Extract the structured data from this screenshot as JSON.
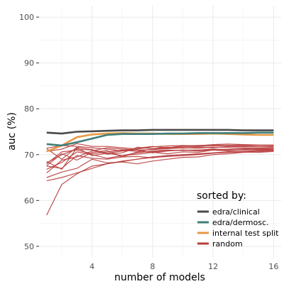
{
  "chart_data": {
    "type": "line",
    "xlabel": "number of models",
    "ylabel": "auc (%)",
    "xlim": [
      0.5,
      16.5
    ],
    "ylim": [
      47.5,
      102.5
    ],
    "x_ticks": [
      4,
      8,
      12,
      16
    ],
    "y_ticks": [
      50,
      60,
      70,
      80,
      90,
      100
    ],
    "grid": true,
    "legend": {
      "title": "sorted by:",
      "placement": "bottom-right",
      "entries": [
        {
          "label": "edra/clinical",
          "color": "#4a4a4a"
        },
        {
          "label": "edra/dermosc.",
          "color": "#3f7f7a"
        },
        {
          "label": "internal test split",
          "color": "#e69a45"
        },
        {
          "label": "random",
          "color": "#b83c3c"
        }
      ]
    },
    "x": [
      1,
      2,
      3,
      4,
      5,
      6,
      7,
      8,
      9,
      10,
      11,
      12,
      13,
      14,
      15,
      16
    ],
    "series": [
      {
        "name": "edra/clinical",
        "color": "#4a4a4a",
        "values": [
          74.8,
          74.6,
          75.0,
          75.1,
          75.2,
          75.3,
          75.3,
          75.4,
          75.4,
          75.4,
          75.4,
          75.4,
          75.4,
          75.3,
          75.3,
          75.3
        ]
      },
      {
        "name": "edra/dermosc.",
        "color": "#3f7f7a",
        "values": [
          72.3,
          72.0,
          72.7,
          73.5,
          74.3,
          74.5,
          74.5,
          74.5,
          74.6,
          74.6,
          74.7,
          74.7,
          74.7,
          74.7,
          74.8,
          74.8
        ]
      },
      {
        "name": "internal test split",
        "color": "#e69a45",
        "values": [
          70.7,
          72.0,
          73.8,
          74.4,
          74.6,
          74.7,
          74.6,
          74.6,
          74.5,
          74.5,
          74.5,
          74.6,
          74.5,
          74.4,
          74.3,
          74.3
        ]
      },
      {
        "name": "random",
        "color": "#b83c3c",
        "runs": [
          [
            56.8,
            63.5,
            65.8,
            67.5,
            68.0,
            68.5,
            69.0,
            69.5,
            69.8,
            70.0,
            70.2,
            70.4,
            70.6,
            70.7,
            70.8,
            71.0
          ],
          [
            64.3,
            65.0,
            66.0,
            67.0,
            68.0,
            68.6,
            69.0,
            69.4,
            69.6,
            69.8,
            70.0,
            70.3,
            70.5,
            70.7,
            70.9,
            71.0
          ],
          [
            68.5,
            66.8,
            71.5,
            69.8,
            70.3,
            69.8,
            70.4,
            70.8,
            71.0,
            70.9,
            71.0,
            71.2,
            71.1,
            71.3,
            71.2,
            71.2
          ],
          [
            67.6,
            70.2,
            68.8,
            70.5,
            70.9,
            69.5,
            70.6,
            70.6,
            70.9,
            71.0,
            71.0,
            71.1,
            71.2,
            71.4,
            71.4,
            71.4
          ],
          [
            71.3,
            69.0,
            71.6,
            71.1,
            70.3,
            70.8,
            71.0,
            71.1,
            71.3,
            71.5,
            71.4,
            71.6,
            71.6,
            71.7,
            71.7,
            71.8
          ],
          [
            66.8,
            68.3,
            70.6,
            70.0,
            69.2,
            69.8,
            70.1,
            70.5,
            70.2,
            70.6,
            70.5,
            71.0,
            70.8,
            71.1,
            71.3,
            71.2
          ],
          [
            71.4,
            72.0,
            71.8,
            71.5,
            71.2,
            70.8,
            71.4,
            71.8,
            71.5,
            71.9,
            72.0,
            72.1,
            72.0,
            72.1,
            72.0,
            72.0
          ],
          [
            65.0,
            66.2,
            67.0,
            69.0,
            68.2,
            68.4,
            68.0,
            68.6,
            69.0,
            69.4,
            69.5,
            70.0,
            70.2,
            70.5,
            70.6,
            70.8
          ],
          [
            68.0,
            70.6,
            71.0,
            70.2,
            70.6,
            71.0,
            70.7,
            71.2,
            71.5,
            71.7,
            71.8,
            71.9,
            72.0,
            71.9,
            72.0,
            72.0
          ],
          [
            67.5,
            67.0,
            69.8,
            69.2,
            69.0,
            69.5,
            69.6,
            69.3,
            69.8,
            70.0,
            70.1,
            70.3,
            70.5,
            70.6,
            70.5,
            70.7
          ],
          [
            66.0,
            68.8,
            69.5,
            70.8,
            71.5,
            71.2,
            71.0,
            70.4,
            70.8,
            71.0,
            70.8,
            71.0,
            70.9,
            71.0,
            71.1,
            71.0
          ],
          [
            68.2,
            70.0,
            71.2,
            71.0,
            70.1,
            70.4,
            71.6,
            71.3,
            71.6,
            71.4,
            71.6,
            71.5,
            71.8,
            71.7,
            71.7,
            71.6
          ],
          [
            70.7,
            71.2,
            72.4,
            71.8,
            71.8,
            71.5,
            71.2,
            71.7,
            71.9,
            72.0,
            71.9,
            72.2,
            72.3,
            72.2,
            72.1,
            72.1
          ]
        ]
      }
    ]
  }
}
